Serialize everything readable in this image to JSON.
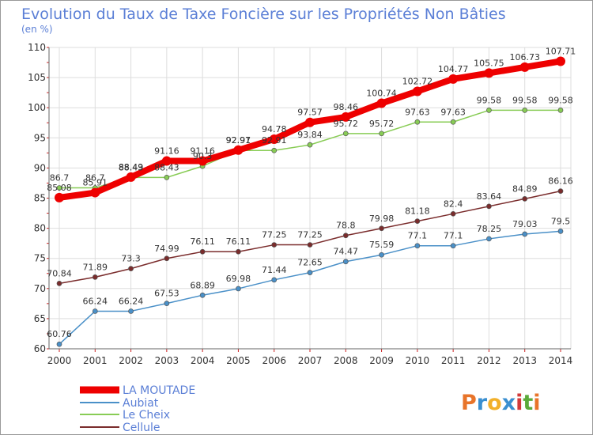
{
  "chart_data": {
    "type": "line",
    "title": "Evolution du Taux de Taxe Foncière sur les Propriétés Non Bâties",
    "ylabel": "(en %)",
    "xlabel": "",
    "x": [
      "2000",
      "2001",
      "2002",
      "2003",
      "2004",
      "2005",
      "2006",
      "2007",
      "2008",
      "2009",
      "2010",
      "2011",
      "2012",
      "2013",
      "2014"
    ],
    "ylim": [
      60,
      110
    ],
    "yticks": [
      60,
      65,
      70,
      75,
      80,
      85,
      90,
      95,
      100,
      105,
      110
    ],
    "grid": true,
    "legend_position": "bottom-left",
    "series": [
      {
        "name": "LA MOUTADE",
        "color": "#ee0000",
        "values": [
          85.08,
          85.91,
          88.49,
          91.16,
          91.16,
          92.97,
          94.78,
          97.57,
          98.46,
          100.74,
          102.72,
          104.77,
          105.75,
          106.73,
          107.71
        ],
        "labels": [
          "85.08",
          "85.91",
          "88.49",
          "91.16",
          "91.16",
          "92.97",
          "94.78",
          "97.57",
          "98.46",
          "100.74",
          "102.72",
          "104.77",
          "105.75",
          "106.73",
          "107.71"
        ]
      },
      {
        "name": "Aubiat",
        "color": "#4a90c8",
        "values": [
          60.76,
          66.24,
          66.24,
          67.53,
          68.89,
          69.98,
          71.44,
          72.65,
          74.47,
          75.59,
          77.1,
          77.1,
          78.25,
          79.03,
          79.5
        ],
        "labels": [
          "60.76",
          "66.24",
          "66.24",
          "67.53",
          "68.89",
          "69.98",
          "71.44",
          "72.65",
          "74.47",
          "75.59",
          "77.1",
          "77.1",
          "78.25",
          "79.03",
          "79.5"
        ]
      },
      {
        "name": "Le Cheix",
        "color": "#88cc55",
        "values": [
          86.7,
          86.7,
          88.43,
          88.43,
          90.3,
          92.91,
          92.91,
          93.84,
          95.72,
          95.72,
          97.63,
          97.63,
          99.58,
          99.58,
          99.58
        ],
        "labels": [
          "86.7",
          "86.7",
          "88.43",
          "88.43",
          "90.3",
          "92.91",
          "92.91",
          "93.84",
          "95.72",
          "95.72",
          "97.63",
          "97.63",
          "99.58",
          "99.58",
          "99.58"
        ]
      },
      {
        "name": "Cellule",
        "color": "#7a2c2c",
        "values": [
          70.84,
          71.89,
          73.3,
          74.99,
          76.11,
          76.11,
          77.25,
          77.25,
          78.8,
          79.98,
          81.18,
          82.4,
          83.64,
          84.89,
          86.16
        ],
        "labels": [
          "70.84",
          "71.89",
          "73.3",
          "74.99",
          "76.11",
          "76.11",
          "77.25",
          "77.25",
          "78.8",
          "79.98",
          "81.18",
          "82.4",
          "83.64",
          "84.89",
          "86.16"
        ]
      }
    ]
  },
  "brand": {
    "logo_text": "Proxiti",
    "logo_colors": [
      "#e8742a",
      "#3a8fd0",
      "#f2b02a",
      "#3a8fd0",
      "#d23a3a",
      "#5aaa3a",
      "#e8742a"
    ]
  }
}
